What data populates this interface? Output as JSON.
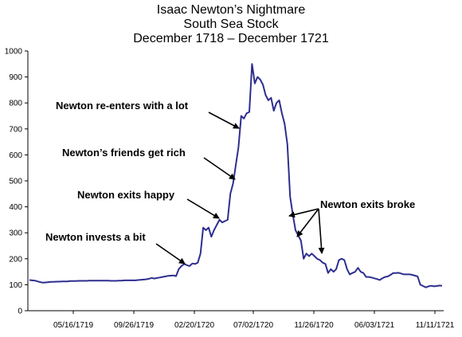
{
  "chart_data": {
    "type": "line",
    "title": "Isaac Newton’s Nightmare",
    "subtitle_lines": [
      "South Sea Stock",
      "December 1718 – December 1721"
    ],
    "xlabel": "",
    "ylabel": "",
    "ylim": [
      0,
      1000
    ],
    "yticks": [
      0,
      100,
      200,
      300,
      400,
      500,
      600,
      700,
      800,
      900,
      1000
    ],
    "xticks": [
      "05/16/1719",
      "09/26/1719",
      "02/20/1720",
      "07/02/1720",
      "11/26/1720",
      "06/03/1721",
      "11/11/1721"
    ],
    "grid": false,
    "legend": "none",
    "line_color": "#2e2e8f",
    "series": [
      {
        "values": [
          118,
          117,
          116,
          113,
          110,
          108,
          109,
          110,
          111,
          111,
          112,
          112,
          113,
          113,
          113,
          114,
          114,
          114,
          115,
          115,
          115,
          115,
          116,
          116,
          116,
          116,
          116,
          116,
          116,
          116,
          115,
          115,
          115,
          116,
          116,
          117,
          117,
          117,
          117,
          117,
          118,
          119,
          120,
          121,
          123,
          126,
          124,
          126,
          128,
          130,
          132,
          134,
          135,
          136,
          133,
          160,
          172,
          180,
          175,
          172,
          182,
          180,
          185,
          220,
          320,
          310,
          320,
          285,
          310,
          330,
          350,
          340,
          345,
          350,
          450,
          490,
          560,
          630,
          750,
          740,
          760,
          765,
          950,
          875,
          900,
          890,
          870,
          830,
          810,
          820,
          770,
          800,
          810,
          760,
          720,
          640,
          440,
          370,
          310,
          290,
          270,
          200,
          220,
          210,
          220,
          210,
          200,
          195,
          185,
          180,
          145,
          160,
          150,
          160,
          195,
          200,
          195,
          160,
          140,
          145,
          150,
          165,
          150,
          145,
          130,
          130,
          128,
          125,
          122,
          118,
          125,
          130,
          132,
          138,
          145,
          145,
          146,
          143,
          140,
          140,
          140,
          138,
          135,
          132,
          100,
          95,
          90,
          94,
          96,
          94,
          95,
          97,
          96
        ]
      }
    ],
    "annotations": [
      {
        "text": "Newton re-enters with a lot",
        "point_index": 79
      },
      {
        "text": "Newton’s friends get rich",
        "point_index": 75
      },
      {
        "text": "Newton exits happy",
        "point_index": 68
      },
      {
        "text": "Newton invests a bit",
        "point_index": 55
      },
      {
        "text": "Newton exits broke",
        "point_indices": [
          97,
          100,
          110
        ]
      }
    ]
  }
}
